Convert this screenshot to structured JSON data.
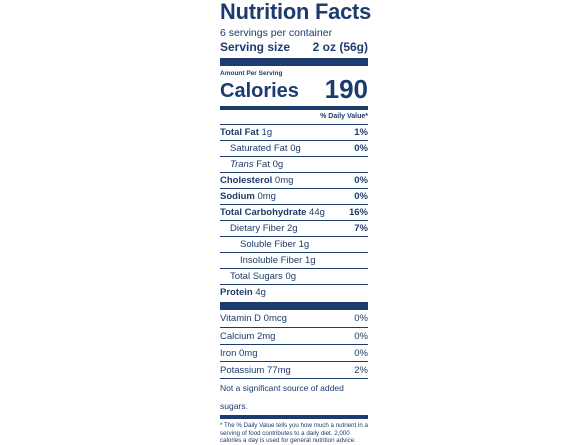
{
  "label": {
    "title": "Nutrition Facts",
    "servings_per_container": "6 servings per container",
    "serving_size_label": "Serving size",
    "serving_size_value": "2 oz (56g)",
    "amount_per_serving": "Amount Per Serving",
    "calories_label": "Calories",
    "calories_value": "190",
    "daily_value_header": "% Daily Value*"
  },
  "nutrients": {
    "total_fat": {
      "name": "Total Fat",
      "amount": "1g",
      "dv": "1%"
    },
    "saturated_fat": {
      "name": "Saturated Fat",
      "amount": "0g",
      "dv": "0%"
    },
    "trans_fat": {
      "name": "Trans",
      "suffix": "Fat",
      "amount": "0g"
    },
    "cholesterol": {
      "name": "Cholesterol",
      "amount": "0mg",
      "dv": "0%"
    },
    "sodium": {
      "name": "Sodium",
      "amount": "0mg",
      "dv": "0%"
    },
    "total_carb": {
      "name": "Total Carbohydrate",
      "amount": "44g",
      "dv": "16%"
    },
    "dietary_fiber": {
      "name": "Dietary Fiber",
      "amount": "2g",
      "dv": "7%"
    },
    "soluble_fiber": {
      "name": "Soluble Fiber",
      "amount": "1g"
    },
    "insoluble_fiber": {
      "name": "Insoluble Fiber",
      "amount": "1g"
    },
    "total_sugars": {
      "name": "Total Sugars",
      "amount": "0g"
    },
    "protein": {
      "name": "Protein",
      "amount": "4g"
    }
  },
  "vitamins": {
    "vitamin_d": {
      "name": "Vitamin D",
      "amount": "0mcg",
      "dv": "0%"
    },
    "calcium": {
      "name": "Calcium",
      "amount": "2mg",
      "dv": "0%"
    },
    "iron": {
      "name": "Iron",
      "amount": "0mg",
      "dv": "0%"
    },
    "potassium": {
      "name": "Potassium",
      "amount": "77mg",
      "dv": "2%"
    }
  },
  "added_sugars_note": "Not a significant source of added sugars.",
  "footnote": "* The % Daily Value tells you how much a nutrient in a serving of food contributes to a daily diet. 2,000 calories a day is used for general nutrition advice.",
  "colors": {
    "ink": "#1c3b6e",
    "background": "#ffffff"
  }
}
